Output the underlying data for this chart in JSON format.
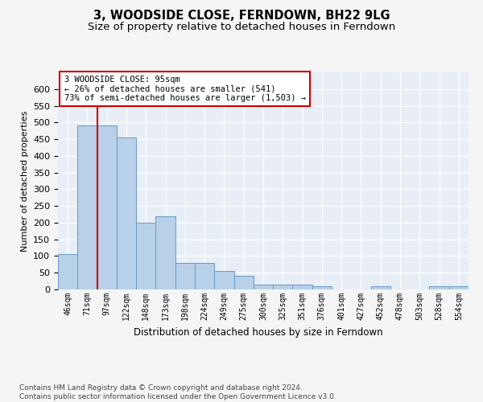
{
  "title": "3, WOODSIDE CLOSE, FERNDOWN, BH22 9LG",
  "subtitle": "Size of property relative to detached houses in Ferndown",
  "xlabel": "Distribution of detached houses by size in Ferndown",
  "ylabel": "Number of detached properties",
  "categories": [
    "46sqm",
    "71sqm",
    "97sqm",
    "122sqm",
    "148sqm",
    "173sqm",
    "198sqm",
    "224sqm",
    "249sqm",
    "275sqm",
    "300sqm",
    "325sqm",
    "351sqm",
    "376sqm",
    "401sqm",
    "427sqm",
    "452sqm",
    "478sqm",
    "503sqm",
    "528sqm",
    "554sqm"
  ],
  "values": [
    105,
    490,
    490,
    455,
    200,
    220,
    80,
    80,
    55,
    40,
    15,
    15,
    15,
    10,
    0,
    0,
    10,
    0,
    0,
    10,
    10
  ],
  "bar_color": "#b8d0e8",
  "bar_edge_color": "#6898c8",
  "vline_position": 1.5,
  "vline_color": "#cc0000",
  "annotation_lines": [
    "3 WOODSIDE CLOSE: 95sqm",
    "← 26% of detached houses are smaller (541)",
    "73% of semi-detached houses are larger (1,503) →"
  ],
  "ylim_max": 650,
  "yticks": [
    0,
    50,
    100,
    150,
    200,
    250,
    300,
    350,
    400,
    450,
    500,
    550,
    600
  ],
  "bg_color": "#e8eef6",
  "grid_color": "#ffffff",
  "footer": "Contains HM Land Registry data © Crown copyright and database right 2024.\nContains public sector information licensed under the Open Government Licence v3.0."
}
